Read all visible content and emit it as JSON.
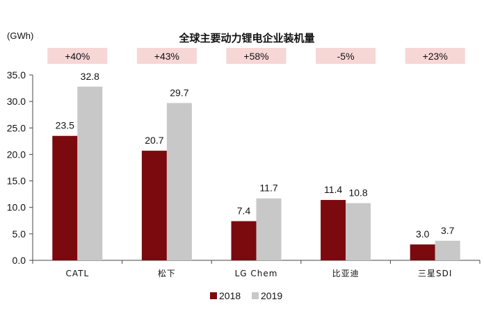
{
  "chart_data": {
    "type": "bar",
    "title": "全球主要动力锂电企业装机量",
    "unit_label": "(GWh)",
    "categories": [
      "CATL",
      "松下",
      "LG Chem",
      "比亚迪",
      "三星SDI"
    ],
    "series": [
      {
        "name": "2018",
        "values": [
          23.5,
          20.7,
          7.4,
          11.4,
          3.0
        ],
        "labels": [
          "23.5",
          "20.7",
          "7.4",
          "11.4",
          "3.0"
        ],
        "color": "#7b0a0f"
      },
      {
        "name": "2019",
        "values": [
          32.8,
          29.7,
          11.7,
          10.8,
          3.7
        ],
        "labels": [
          "32.8",
          "29.7",
          "11.7",
          "10.8",
          "3.7"
        ],
        "color": "#c8c8c8"
      }
    ],
    "growth": [
      "+40%",
      "+43%",
      "+58%",
      "-5%",
      "+23%"
    ],
    "growth_box_color": "#f7d6d6",
    "ylim": [
      0,
      35
    ],
    "yticks": [
      "0.0",
      "5.0",
      "10.0",
      "15.0",
      "20.0",
      "25.0",
      "30.0",
      "35.0"
    ],
    "ytick_values": [
      0,
      5,
      10,
      15,
      20,
      25,
      30,
      35
    ],
    "legend_position": "bottom-center",
    "grid": false
  }
}
